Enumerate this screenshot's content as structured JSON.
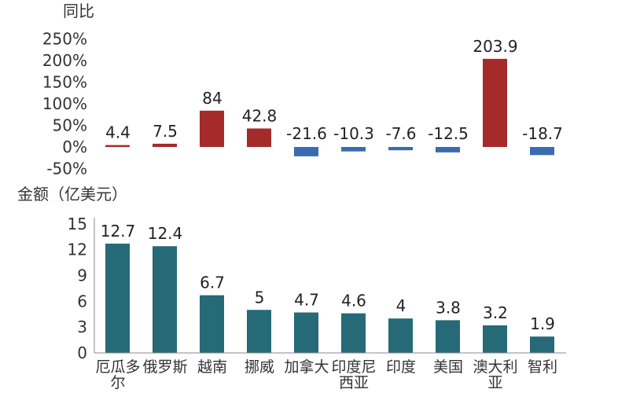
{
  "chart_data": [
    {
      "type": "bar",
      "ylabel": "同比",
      "ylim": [
        -50,
        250
      ],
      "yticks": [
        "250%",
        "200%",
        "150%",
        "100%",
        "50%",
        "0%",
        "-50%"
      ],
      "tick_values": [
        250,
        200,
        150,
        100,
        50,
        0,
        -50
      ],
      "values": [
        4.4,
        7.5,
        84,
        42.8,
        -21.6,
        -10.3,
        -7.6,
        -12.5,
        203.9,
        -18.7
      ],
      "value_labels": [
        "4.4",
        "7.5",
        "84",
        "42.8",
        "-21.6",
        "-10.3",
        "-7.6",
        "-12.5",
        "203.9",
        "-18.7"
      ],
      "colors": {
        "positive": "#A52A2A",
        "negative": "#3A6BB0"
      }
    },
    {
      "type": "bar",
      "ylabel": "金额（亿美元）",
      "ylim": [
        0,
        15
      ],
      "yticks": [
        "15",
        "12",
        "9",
        "6",
        "3",
        "0"
      ],
      "tick_values": [
        15,
        12,
        9,
        6,
        3,
        0
      ],
      "categories": [
        [
          "厄瓜多",
          "尔"
        ],
        [
          "俄罗斯"
        ],
        [
          "越南"
        ],
        [
          "挪威"
        ],
        [
          "加拿大"
        ],
        [
          "印度尼",
          "西亚"
        ],
        [
          "印度"
        ],
        [
          "美国"
        ],
        [
          "澳大利",
          "亚"
        ],
        [
          "智利"
        ]
      ],
      "values": [
        12.7,
        12.4,
        6.7,
        5,
        4.7,
        4.6,
        4,
        3.8,
        3.2,
        1.9
      ],
      "value_labels": [
        "12.7",
        "12.4",
        "6.7",
        "5",
        "4.7",
        "4.6",
        "4",
        "3.8",
        "3.2",
        "1.9"
      ],
      "colors": {
        "bar": "#266A78",
        "axis": "#888888"
      }
    }
  ]
}
